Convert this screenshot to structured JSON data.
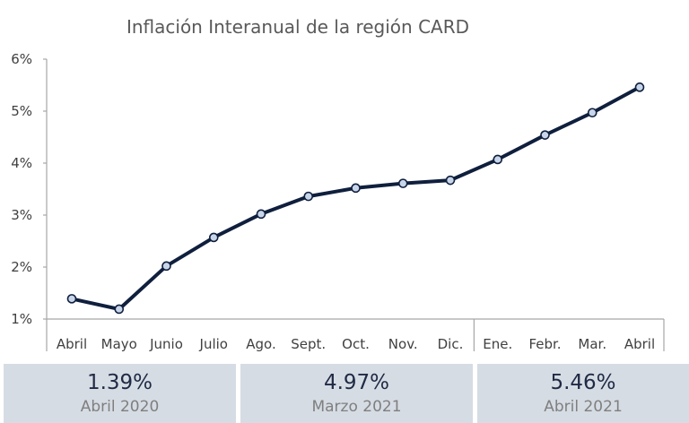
{
  "chart_data": {
    "type": "line",
    "title": "Inflación Interanual de la región CARD",
    "categories": [
      "Abril",
      "Mayo",
      "Junio",
      "Julio",
      "Ago.",
      "Sept.",
      "Oct.",
      "Nov.",
      "Dic.",
      "Ene.",
      "Febr.",
      "Mar.",
      "Abril"
    ],
    "series": [
      {
        "values": [
          1.39,
          1.19,
          2.02,
          2.57,
          3.02,
          3.36,
          3.52,
          3.61,
          3.67,
          4.07,
          4.54,
          4.97,
          5.46
        ]
      }
    ],
    "ylim": [
      1,
      6
    ],
    "yticks": [
      "1%",
      "2%",
      "3%",
      "4%",
      "5%",
      "6%"
    ],
    "year_separators_after_index": [
      8
    ],
    "grid": false,
    "line_color": "#0f1f3d",
    "marker_fill": "#c9d6ea"
  },
  "highlights": [
    {
      "value": "1.39%",
      "label": "Abril 2020"
    },
    {
      "value": "4.97%",
      "label": "Marzo 2021"
    },
    {
      "value": "5.46%",
      "label": "Abril 2021"
    }
  ]
}
